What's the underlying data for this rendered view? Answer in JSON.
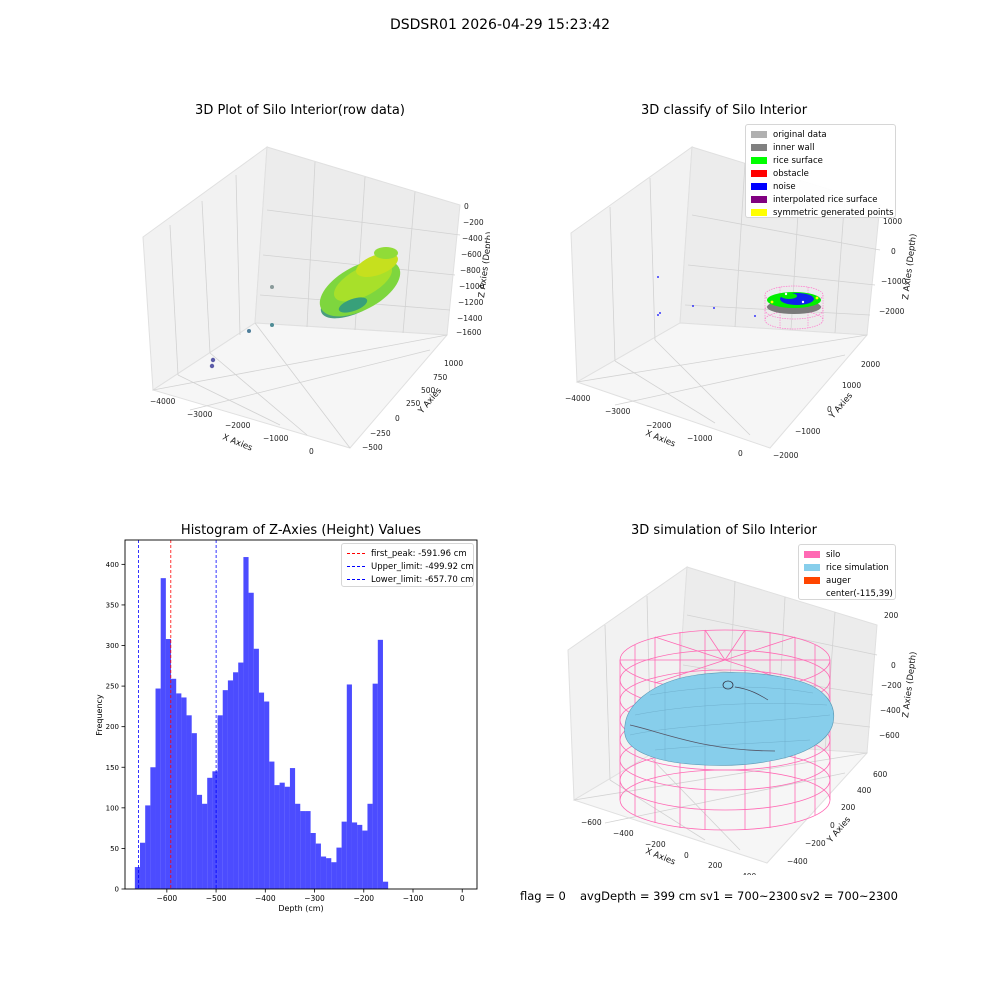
{
  "figure": {
    "suptitle": "DSDSR01 2026-04-29 15:23:42"
  },
  "panels": {
    "raw": {
      "title": "3D Plot of Silo Interior(row data)",
      "x_label": "X Axies",
      "y_label": "Y Axies",
      "z_label": "Z Axies (Depth)",
      "x_ticks": [
        "−4000",
        "−3000",
        "−2000",
        "−1000",
        "0"
      ],
      "y_ticks": [
        "−500",
        "−250",
        "0",
        "250",
        "500",
        "750",
        "1000"
      ],
      "z_ticks": [
        "0",
        "−200",
        "−400",
        "−600",
        "−800",
        "−1000",
        "−1200",
        "−1400",
        "−1600"
      ]
    },
    "classify": {
      "title": "3D classify of Silo Interior",
      "x_label": "X Axies",
      "y_label": "Y Axies",
      "z_label": "Z Axies (Depth)",
      "x_ticks": [
        "−4000",
        "−3000",
        "−2000",
        "−1000",
        "0"
      ],
      "y_ticks": [
        "−2000",
        "−1000",
        "0",
        "1000",
        "2000"
      ],
      "z_ticks": [
        "1000",
        "0",
        "−1000",
        "−2000"
      ],
      "legend": [
        {
          "label": "original data",
          "color": "#b0b0b0"
        },
        {
          "label": "inner wall",
          "color": "#808080"
        },
        {
          "label": "rice surface",
          "color": "#00ff00"
        },
        {
          "label": "obstacle",
          "color": "#ff0000"
        },
        {
          "label": "noise",
          "color": "#0000ff"
        },
        {
          "label": "interpolated rice surface",
          "color": "#800080"
        },
        {
          "label": "symmetric generated points",
          "color": "#ffff00"
        }
      ]
    },
    "simulation": {
      "title": "3D simulation of Silo Interior",
      "x_label": "X Axies",
      "y_label": "Y Axies",
      "z_label": "Z Axies (Depth)",
      "x_ticks": [
        "−600",
        "−400",
        "−200",
        "0",
        "200",
        "400"
      ],
      "y_ticks": [
        "−400",
        "−200",
        "0",
        "200",
        "400",
        "600"
      ],
      "z_ticks": [
        "200",
        "0",
        "−200",
        "−400",
        "−600"
      ],
      "legend": [
        {
          "label": "silo",
          "color": "#ff69b4"
        },
        {
          "label": "rice simulation",
          "color": "#87ceeb"
        },
        {
          "label": "auger",
          "color": "#ff4500"
        },
        {
          "label": "center(-115,39)",
          "color": ""
        }
      ]
    }
  },
  "chart_data": {
    "type": "bar",
    "title": "Histogram of Z-Axies (Height) Values",
    "xlabel": "Depth (cm)",
    "ylabel": "Frequency",
    "xlim": [
      -685,
      30
    ],
    "ylim": [
      0,
      430
    ],
    "x_ticks": [
      -600,
      -500,
      -400,
      -300,
      -200,
      -100,
      0
    ],
    "y_ticks": [
      0,
      50,
      100,
      150,
      200,
      250,
      300,
      350,
      400
    ],
    "bin_start": -665,
    "bin_width": 10.5,
    "values": [
      27,
      57,
      103,
      150,
      247,
      383,
      308,
      259,
      241,
      236,
      214,
      192,
      116,
      105,
      137,
      145,
      214,
      245,
      257,
      267,
      279,
      409,
      365,
      296,
      242,
      231,
      157,
      128,
      131,
      126,
      149,
      105,
      96,
      96,
      69,
      56,
      40,
      38,
      33,
      51,
      83,
      252,
      82,
      79,
      72,
      105,
      253,
      307,
      9
    ],
    "bar_color": "#0000ff",
    "lines": [
      {
        "label": "first_peak: -591.96 cm",
        "x": -591.96,
        "color": "#ff0000"
      },
      {
        "label": "Upper_limit: -499.92 cm",
        "x": -499.92,
        "color": "#0000ff"
      },
      {
        "label": "Lower_limit: -657.70 cm",
        "x": -657.7,
        "color": "#0000ff"
      }
    ]
  },
  "status": {
    "flag": "flag = 0",
    "avg_depth": "avgDepth = 399 cm",
    "sv1": "sv1 = 700~2300",
    "sv2": "sv2 = 700~2300"
  }
}
